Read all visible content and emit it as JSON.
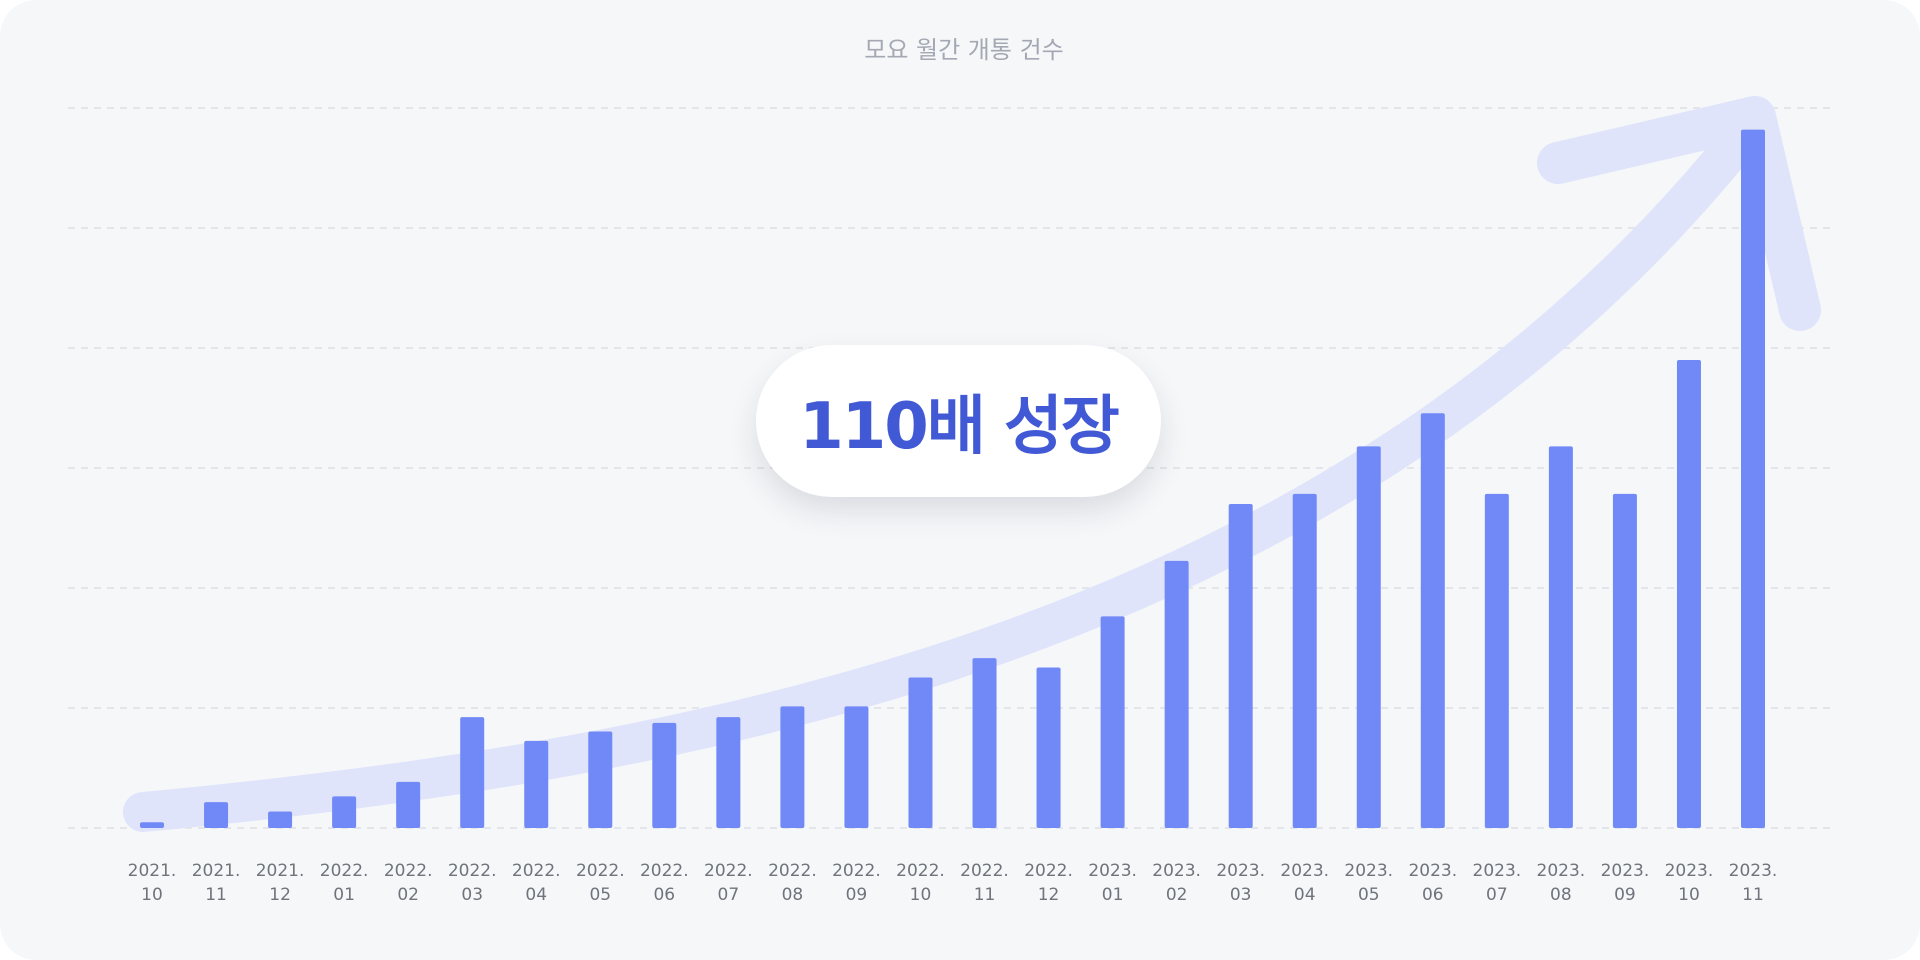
{
  "chart_data": {
    "type": "bar",
    "title": "모요 월간 개통 건수",
    "categories": [
      "2021.\n10",
      "2021.\n11",
      "2021.\n12",
      "2022.\n01",
      "2022.\n02",
      "2022.\n03",
      "2022.\n04",
      "2022.\n05",
      "2022.\n06",
      "2022.\n07",
      "2022.\n08",
      "2022.\n09",
      "2022.\n10",
      "2022.\n11",
      "2022.\n12",
      "2023.\n01",
      "2023.\n02",
      "2023.\n03",
      "2023.\n04",
      "2023.\n05",
      "2023.\n06",
      "2023.\n07",
      "2023.\n08",
      "2023.\n09",
      "2023.\n10",
      "2023.\n11"
    ],
    "values": [
      0.8,
      3.6,
      2.3,
      4.4,
      6.4,
      15.4,
      12.1,
      13.4,
      14.6,
      15.4,
      16.9,
      16.9,
      20.9,
      23.6,
      22.3,
      29.4,
      37.1,
      45.0,
      46.4,
      53.0,
      57.6,
      46.4,
      53.0,
      46.4,
      65.0,
      97.0
    ],
    "ylim": [
      0,
      100
    ],
    "gridlines": 7,
    "grid": true,
    "bar_color": "#7188f7",
    "arrow_color": "#dfe4fa",
    "annotation": "110배 성장",
    "annotation_color": "#4259d6"
  }
}
